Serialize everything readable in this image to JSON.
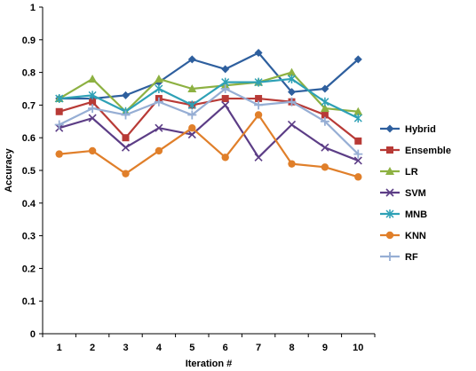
{
  "chart_data": {
    "type": "line",
    "xlabel": "Iteration #",
    "ylabel": "Accuracy",
    "ylim": [
      0,
      1
    ],
    "yticks": [
      "0",
      "0.1",
      "0.2",
      "0.3",
      "0.4",
      "0.5",
      "0.6",
      "0.7",
      "0.8",
      "0.9",
      "1"
    ],
    "x": [
      1,
      2,
      3,
      4,
      5,
      6,
      7,
      8,
      9,
      10
    ],
    "grid": false,
    "legend_position": "right",
    "series": [
      {
        "name": "Hybrid",
        "color": "#2e5f9e",
        "marker": "diamond",
        "values": [
          0.72,
          0.72,
          0.73,
          0.77,
          0.84,
          0.81,
          0.86,
          0.74,
          0.75,
          0.84
        ]
      },
      {
        "name": "Ensemble",
        "color": "#b83a36",
        "marker": "square",
        "values": [
          0.68,
          0.71,
          0.6,
          0.72,
          0.7,
          0.72,
          0.72,
          0.71,
          0.67,
          0.59
        ]
      },
      {
        "name": "LR",
        "color": "#8db142",
        "marker": "triangle",
        "values": [
          0.72,
          0.78,
          0.68,
          0.78,
          0.75,
          0.76,
          0.77,
          0.8,
          0.69,
          0.68
        ]
      },
      {
        "name": "SVM",
        "color": "#5c3d86",
        "marker": "x",
        "values": [
          0.63,
          0.66,
          0.57,
          0.63,
          0.61,
          0.7,
          0.54,
          0.64,
          0.57,
          0.53
        ]
      },
      {
        "name": "MNB",
        "color": "#2ea1b6",
        "marker": "star",
        "values": [
          0.72,
          0.73,
          0.68,
          0.75,
          0.7,
          0.77,
          0.77,
          0.78,
          0.71,
          0.66
        ]
      },
      {
        "name": "KNN",
        "color": "#e07f2a",
        "marker": "circle",
        "values": [
          0.55,
          0.56,
          0.49,
          0.56,
          0.63,
          0.54,
          0.67,
          0.52,
          0.51,
          0.48
        ]
      },
      {
        "name": "RF",
        "color": "#96aed4",
        "marker": "plus",
        "values": [
          0.64,
          0.69,
          0.67,
          0.71,
          0.67,
          0.75,
          0.7,
          0.71,
          0.65,
          0.55
        ]
      }
    ]
  }
}
